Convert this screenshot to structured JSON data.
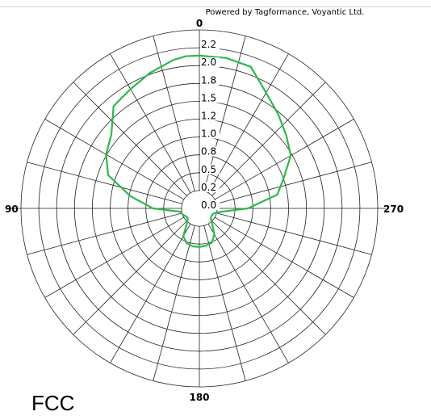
{
  "credit": "Powered by Tagformance, Voyantic Ltd.",
  "footer_label": "FCC",
  "chart_data": {
    "type": "polar-line",
    "angle_direction": "counter-clockwise",
    "angle_zero": "top",
    "angle_labels": [
      {
        "angle": 0,
        "text": "0"
      },
      {
        "angle": 90,
        "text": "90"
      },
      {
        "angle": 180,
        "text": "180"
      },
      {
        "angle": 270,
        "text": "270"
      }
    ],
    "radial_ticks": [
      "0.0",
      "0.2",
      "0.5",
      "0.8",
      "1.0",
      "1.2",
      "1.5",
      "1.8",
      "2.0",
      "2.2"
    ],
    "radial_range": [
      0,
      2.5
    ],
    "radial_rings": 10,
    "spokes_deg_step": 15,
    "grid": true,
    "series": [
      {
        "color": "#2db84a",
        "points": [
          {
            "angle": 0,
            "r": 2.14
          },
          {
            "angle": 5,
            "r": 2.14
          },
          {
            "angle": 10,
            "r": 2.11
          },
          {
            "angle": 20,
            "r": 2.02
          },
          {
            "angle": 30,
            "r": 1.93
          },
          {
            "angle": 40,
            "r": 1.87
          },
          {
            "angle": 50,
            "r": 1.61
          },
          {
            "angle": 60,
            "r": 1.51
          },
          {
            "angle": 70,
            "r": 1.36
          },
          {
            "angle": 80,
            "r": 0.98
          },
          {
            "angle": 90,
            "r": 0.65
          },
          {
            "angle": 100,
            "r": 0.27
          },
          {
            "angle": 110,
            "r": 0.25
          },
          {
            "angle": 120,
            "r": 0.22
          },
          {
            "angle": 130,
            "r": 0.21
          },
          {
            "angle": 140,
            "r": 0.27
          },
          {
            "angle": 150,
            "r": 0.45
          },
          {
            "angle": 160,
            "r": 0.52
          },
          {
            "angle": 170,
            "r": 0.54
          },
          {
            "angle": 180,
            "r": 0.54
          },
          {
            "angle": 190,
            "r": 0.53
          },
          {
            "angle": 200,
            "r": 0.51
          },
          {
            "angle": 210,
            "r": 0.42
          },
          {
            "angle": 220,
            "r": 0.28
          },
          {
            "angle": 230,
            "r": 0.21
          },
          {
            "angle": 240,
            "r": 0.2
          },
          {
            "angle": 250,
            "r": 0.21
          },
          {
            "angle": 260,
            "r": 0.29
          },
          {
            "angle": 270,
            "r": 0.68
          },
          {
            "angle": 280,
            "r": 1.11
          },
          {
            "angle": 290,
            "r": 1.26
          },
          {
            "angle": 300,
            "r": 1.48
          },
          {
            "angle": 310,
            "r": 1.59
          },
          {
            "angle": 320,
            "r": 1.72
          },
          {
            "angle": 330,
            "r": 1.87
          },
          {
            "angle": 340,
            "r": 2.11
          },
          {
            "angle": 350,
            "r": 2.14
          }
        ]
      }
    ]
  }
}
